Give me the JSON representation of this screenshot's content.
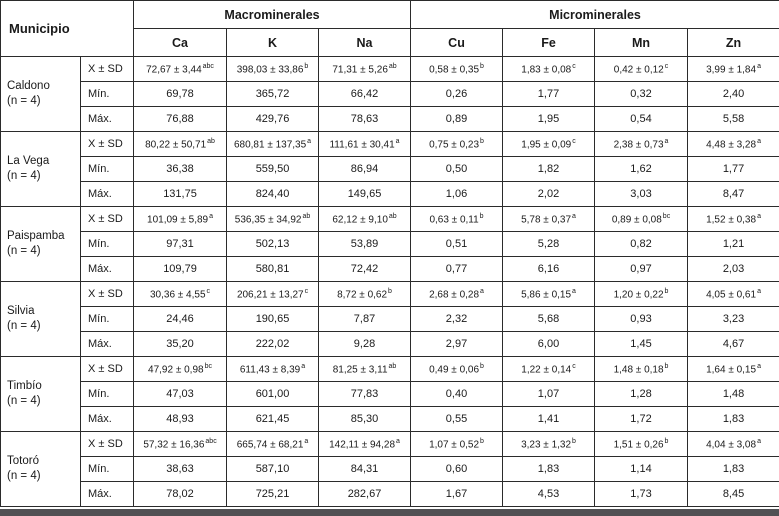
{
  "table": {
    "corner_header": "Municipio",
    "groups": [
      {
        "label": "Macrominerales",
        "columns": [
          "Ca",
          "K",
          "Na"
        ]
      },
      {
        "label": "Microminerales",
        "columns": [
          "Cu",
          "Fe",
          "Mn",
          "Zn"
        ]
      }
    ],
    "stat_labels": [
      "X ± SD",
      "Mín.",
      "Máx."
    ],
    "municipalities": [
      {
        "name": "Caldono",
        "n": "(n = 4)",
        "mean": [
          {
            "value": "72,67 ± 3,44",
            "sup": "abc"
          },
          {
            "value": "398,03 ± 33,86",
            "sup": "b"
          },
          {
            "value": "71,31 ± 5,26",
            "sup": "ab"
          },
          {
            "value": "0,58 ± 0,35",
            "sup": "b"
          },
          {
            "value": "1,83 ± 0,08",
            "sup": "c"
          },
          {
            "value": "0,42 ± 0,12",
            "sup": "c"
          },
          {
            "value": "3,99 ± 1,84",
            "sup": "a"
          }
        ],
        "min": [
          "69,78",
          "365,72",
          "66,42",
          "0,26",
          "1,77",
          "0,32",
          "2,40"
        ],
        "max": [
          "76,88",
          "429,76",
          "78,63",
          "0,89",
          "1,95",
          "0,54",
          "5,58"
        ]
      },
      {
        "name": "La Vega",
        "n": "(n = 4)",
        "mean": [
          {
            "value": "80,22 ± 50,71",
            "sup": "ab"
          },
          {
            "value": "680,81 ± 137,35",
            "sup": "a"
          },
          {
            "value": "111,61 ± 30,41",
            "sup": "a"
          },
          {
            "value": "0,75 ± 0,23",
            "sup": "b"
          },
          {
            "value": "1,95 ± 0,09",
            "sup": "c"
          },
          {
            "value": "2,38 ± 0,73",
            "sup": "a"
          },
          {
            "value": "4,48 ± 3,28",
            "sup": "a"
          }
        ],
        "min": [
          "36,38",
          "559,50",
          "86,94",
          "0,50",
          "1,82",
          "1,62",
          "1,77"
        ],
        "max": [
          "131,75",
          "824,40",
          "149,65",
          "1,06",
          "2,02",
          "3,03",
          "8,47"
        ]
      },
      {
        "name": "Paispamba",
        "n": "(n = 4)",
        "mean": [
          {
            "value": "101,09 ± 5,89",
            "sup": "a"
          },
          {
            "value": "536,35 ± 34,92",
            "sup": "ab"
          },
          {
            "value": "62,12 ± 9,10",
            "sup": "ab"
          },
          {
            "value": "0,63 ± 0,11",
            "sup": "b"
          },
          {
            "value": "5,78 ± 0,37",
            "sup": "a"
          },
          {
            "value": "0,89 ± 0,08",
            "sup": "bc"
          },
          {
            "value": "1,52 ± 0,38",
            "sup": "a"
          }
        ],
        "min": [
          "97,31",
          "502,13",
          "53,89",
          "0,51",
          "5,28",
          "0,82",
          "1,21"
        ],
        "max": [
          "109,79",
          "580,81",
          "72,42",
          "0,77",
          "6,16",
          "0,97",
          "2,03"
        ]
      },
      {
        "name": "Silvia",
        "n": "(n = 4)",
        "mean": [
          {
            "value": "30,36 ± 4,55",
            "sup": "c"
          },
          {
            "value": "206,21 ± 13,27",
            "sup": "c"
          },
          {
            "value": "8,72 ± 0,62",
            "sup": "b"
          },
          {
            "value": "2,68 ± 0,28",
            "sup": "a"
          },
          {
            "value": "5,86 ± 0,15",
            "sup": "a"
          },
          {
            "value": "1,20 ± 0,22",
            "sup": "b"
          },
          {
            "value": "4,05 ± 0,61",
            "sup": "a"
          }
        ],
        "min": [
          "24,46",
          "190,65",
          "7,87",
          "2,32",
          "5,68",
          "0,93",
          "3,23"
        ],
        "max": [
          "35,20",
          "222,02",
          "9,28",
          "2,97",
          "6,00",
          "1,45",
          "4,67"
        ]
      },
      {
        "name": "Timbío",
        "n": "(n = 4)",
        "mean": [
          {
            "value": "47,92 ± 0,98",
            "sup": "bc"
          },
          {
            "value": "611,43 ± 8,39",
            "sup": "a"
          },
          {
            "value": "81,25 ± 3,11",
            "sup": "ab"
          },
          {
            "value": "0,49 ± 0,06",
            "sup": "b"
          },
          {
            "value": "1,22 ± 0,14",
            "sup": "c"
          },
          {
            "value": "1,48 ± 0,18",
            "sup": "b"
          },
          {
            "value": "1,64 ± 0,15",
            "sup": "a"
          }
        ],
        "min": [
          "47,03",
          "601,00",
          "77,83",
          "0,40",
          "1,07",
          "1,28",
          "1,48"
        ],
        "max": [
          "48,93",
          "621,45",
          "85,30",
          "0,55",
          "1,41",
          "1,72",
          "1,83"
        ]
      },
      {
        "name": "Totoró",
        "n": "(n = 4)",
        "mean": [
          {
            "value": "57,32 ± 16,36",
            "sup": "abc"
          },
          {
            "value": "665,74 ± 68,21",
            "sup": "a"
          },
          {
            "value": "142,11 ± 94,28",
            "sup": "a"
          },
          {
            "value": "1,07 ± 0,52",
            "sup": "b"
          },
          {
            "value": "3,23 ± 1,32",
            "sup": "b"
          },
          {
            "value": "1,51 ± 0,26",
            "sup": "b"
          },
          {
            "value": "4,04 ± 3,08",
            "sup": "a"
          }
        ],
        "min": [
          "38,63",
          "587,10",
          "84,31",
          "0,60",
          "1,83",
          "1,14",
          "1,83"
        ],
        "max": [
          "78,02",
          "725,21",
          "282,67",
          "1,67",
          "4,53",
          "1,73",
          "8,45"
        ]
      }
    ]
  }
}
